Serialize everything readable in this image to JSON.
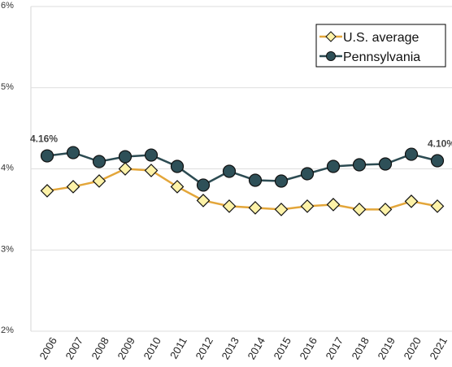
{
  "chart_data": {
    "type": "line",
    "x": [
      "2006",
      "2007",
      "2008",
      "2009",
      "2010",
      "2011",
      "2012",
      "2013",
      "2014",
      "2015",
      "2016",
      "2017",
      "2018",
      "2019",
      "2020",
      "2021"
    ],
    "series": [
      {
        "name": "U.S. average",
        "color": "#e3a63a",
        "marker_fill": "#fdf2a8",
        "marker": "diamond",
        "values": [
          3.73,
          3.78,
          3.85,
          4.0,
          3.98,
          3.78,
          3.61,
          3.54,
          3.52,
          3.5,
          3.54,
          3.56,
          3.5,
          3.5,
          3.6,
          3.54
        ]
      },
      {
        "name": "Pennsylvania",
        "color": "#2c4b52",
        "marker_fill": "#2e5058",
        "marker": "circle",
        "values": [
          4.16,
          4.2,
          4.09,
          4.15,
          4.17,
          4.03,
          3.8,
          3.97,
          3.86,
          3.85,
          3.94,
          4.03,
          4.05,
          4.06,
          4.18,
          4.1
        ],
        "value_labels": [
          "4.16%",
          null,
          null,
          null,
          null,
          null,
          null,
          null,
          null,
          null,
          null,
          null,
          null,
          null,
          null,
          "4.10%"
        ]
      }
    ],
    "ylim": [
      2,
      6
    ],
    "yticks": [
      {
        "value": 2,
        "label": "2%"
      },
      {
        "value": 3,
        "label": "3%"
      },
      {
        "value": 4,
        "label": "4%"
      },
      {
        "value": 5,
        "label": "5%"
      },
      {
        "value": 6,
        "label": "6%"
      }
    ],
    "grid": true,
    "legend": "top-right"
  }
}
